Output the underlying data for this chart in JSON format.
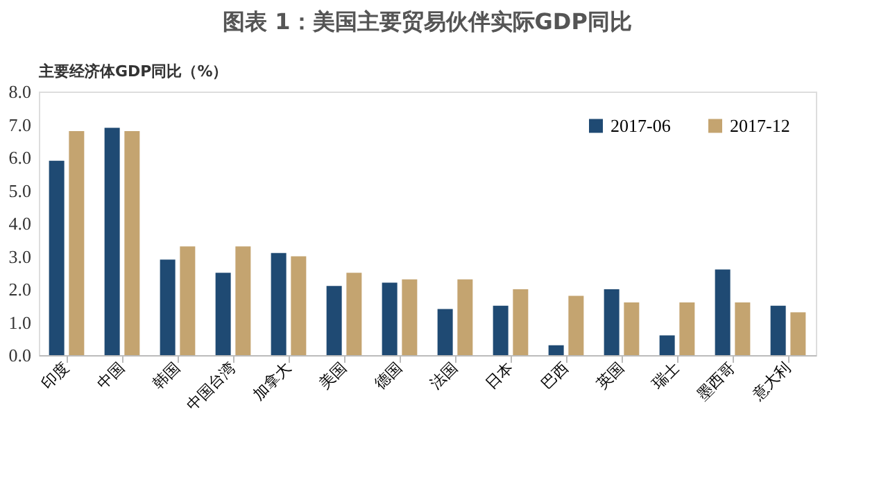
{
  "chart_data": {
    "type": "bar",
    "title": "图表 1：美国主要贸易伙伴实际GDP同比",
    "ylabel": "主要经济体GDP同比（%）",
    "categories": [
      "印度",
      "中国",
      "韩国",
      "中国台湾",
      "加拿大",
      "美国",
      "德国",
      "法国",
      "日本",
      "巴西",
      "英国",
      "瑞士",
      "墨西哥",
      "意大利"
    ],
    "series": [
      {
        "name": "2017-06",
        "color": "#1f4a73",
        "values": [
          5.9,
          6.9,
          2.9,
          2.5,
          3.1,
          2.1,
          2.2,
          1.4,
          1.5,
          0.3,
          2.0,
          0.6,
          2.6,
          1.5
        ]
      },
      {
        "name": "2017-12",
        "color": "#c4a470",
        "values": [
          6.8,
          6.8,
          3.3,
          3.3,
          3.0,
          2.5,
          2.3,
          2.3,
          2.0,
          1.8,
          1.6,
          1.6,
          1.6,
          1.3
        ]
      }
    ],
    "ylim": [
      0,
      8
    ],
    "yticks": [
      {
        "value": 0,
        "label": "0.0"
      },
      {
        "value": 1,
        "label": "1.0"
      },
      {
        "value": 2,
        "label": "2.0"
      },
      {
        "value": 3,
        "label": "3.0"
      },
      {
        "value": 4,
        "label": "4.0"
      },
      {
        "value": 5,
        "label": "5.0"
      },
      {
        "value": 6,
        "label": "6.0"
      },
      {
        "value": 7,
        "label": "7.0"
      },
      {
        "value": 8,
        "label": "8.0"
      }
    ],
    "grid": false,
    "legend": "top right"
  }
}
